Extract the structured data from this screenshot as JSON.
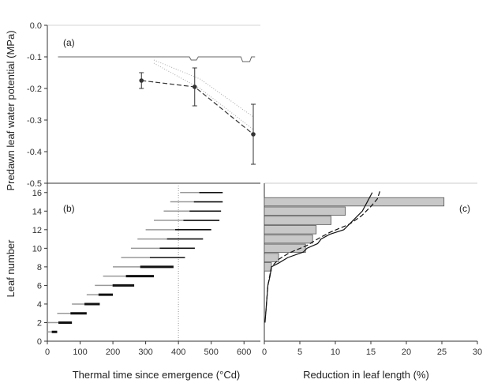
{
  "chart_data": [
    {
      "id": "a",
      "panel_label": "(a)",
      "type": "line",
      "ylabel": "Predawn leaf water potential (MPa)",
      "ylim": [
        -0.5,
        0.0
      ],
      "xlim": [
        0,
        600
      ],
      "yticks": [
        "0.0",
        "-0.1",
        "-0.2",
        "-0.3",
        "-0.4",
        "-0.5"
      ],
      "series": [
        {
          "style": "dashed-markers",
          "x": [
            265,
            415,
            580
          ],
          "y": [
            -0.175,
            -0.195,
            -0.345
          ],
          "err": [
            0.025,
            0.06,
            0.095
          ]
        },
        {
          "style": "dotted-band",
          "x": [
            300,
            430,
            580
          ],
          "y_upper": [
            -0.11,
            -0.17,
            -0.29
          ],
          "y_lower": [
            -0.12,
            -0.2,
            -0.33
          ]
        },
        {
          "style": "solid-reference",
          "x": [
            30,
            285,
            300,
            335,
            345,
            400,
            405,
            420,
            425,
            545,
            550,
            570,
            575,
            585
          ],
          "y": [
            -0.1,
            -0.1,
            -0.1,
            -0.1,
            -0.1,
            -0.1,
            -0.11,
            -0.11,
            -0.1,
            -0.1,
            -0.115,
            -0.115,
            -0.1,
            -0.1
          ]
        }
      ]
    },
    {
      "id": "b",
      "panel_label": "(b)",
      "type": "range-bars",
      "xlabel": "Thermal time since emergence (°Cd)",
      "ylabel": "Leaf number",
      "xlim": [
        0,
        650
      ],
      "ylim": [
        0,
        17
      ],
      "xticks": [
        "0",
        "100",
        "200",
        "300",
        "400",
        "500",
        "600"
      ],
      "yticks": [
        "0",
        "2",
        "4",
        "6",
        "8",
        "10",
        "12",
        "14",
        "16"
      ],
      "reference_line_x": 400,
      "leaves": [
        {
          "leaf": 1,
          "start": 0,
          "end": 30
        },
        {
          "leaf": 2,
          "start": 0,
          "end": 75
        },
        {
          "leaf": 3,
          "start": 30,
          "end": 120
        },
        {
          "leaf": 4,
          "start": 75,
          "end": 160
        },
        {
          "leaf": 5,
          "start": 120,
          "end": 200
        },
        {
          "leaf": 6,
          "start": 145,
          "end": 265
        },
        {
          "leaf": 7,
          "start": 170,
          "end": 325
        },
        {
          "leaf": 8,
          "start": 200,
          "end": 385
        },
        {
          "leaf": 9,
          "start": 225,
          "end": 420
        },
        {
          "leaf": 10,
          "start": 255,
          "end": 450
        },
        {
          "leaf": 11,
          "start": 275,
          "end": 475
        },
        {
          "leaf": 12,
          "start": 300,
          "end": 500
        },
        {
          "leaf": 13,
          "start": 325,
          "end": 525
        },
        {
          "leaf": 14,
          "start": 355,
          "end": 530
        },
        {
          "leaf": 15,
          "start": 375,
          "end": 535
        },
        {
          "leaf": 16,
          "start": 405,
          "end": 535
        }
      ]
    },
    {
      "id": "c",
      "panel_label": "(c)",
      "type": "bar",
      "orientation": "horizontal",
      "xlabel": "Reduction in leaf length (%)",
      "xlim": [
        0,
        30
      ],
      "ylim": [
        0,
        17
      ],
      "xticks": [
        "0",
        "5",
        "10",
        "15",
        "20",
        "25",
        "30"
      ],
      "categories": [
        8,
        9,
        10,
        11,
        12,
        13,
        14,
        15
      ],
      "values": [
        1.0,
        2.0,
        5.8,
        6.8,
        7.3,
        9.4,
        11.4,
        25.3
      ],
      "cumulative_lines": [
        {
          "style": "solid",
          "x": [
            0.1,
            0.3,
            0.5,
            0.8,
            1.0,
            2.0,
            3.3,
            5.5,
            6.0,
            7.5,
            8.0,
            9.2,
            11.2,
            12.5,
            13.8,
            14.5,
            15.2
          ],
          "y": [
            2,
            4,
            6,
            7,
            8,
            8.4,
            9,
            9.6,
            10,
            10.5,
            11,
            11.5,
            12,
            13,
            14,
            15,
            16
          ]
        },
        {
          "style": "dashed",
          "x": [
            0.2,
            0.5,
            1.0,
            2.0,
            3.5,
            6.0,
            7.5,
            9.2,
            12.0,
            13.7,
            15.0,
            15.9,
            16.3
          ],
          "y": [
            3,
            6,
            8,
            8.8,
            9.5,
            10.3,
            11.0,
            11.7,
            12.6,
            13.5,
            14.5,
            15.3,
            16.2
          ]
        }
      ]
    }
  ]
}
